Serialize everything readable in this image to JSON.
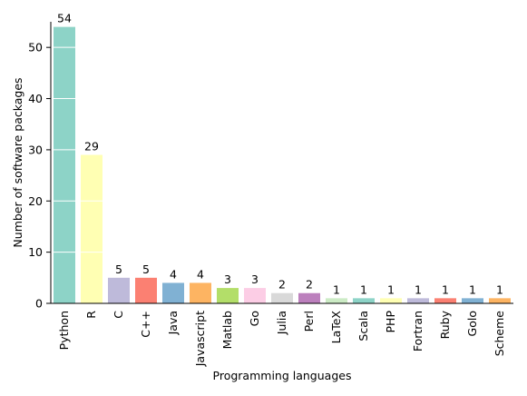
{
  "chart_data": {
    "type": "bar",
    "xlabel": "Programming languages",
    "ylabel": "Number of software packages",
    "ylim": [
      0,
      55
    ],
    "yticks": [
      0,
      10,
      20,
      30,
      40,
      50
    ],
    "grid": "horizontal white lines across bars",
    "categories": [
      "Python",
      "R",
      "C",
      "C++",
      "Java",
      "Javascript",
      "Matlab",
      "Go",
      "Julia",
      "Perl",
      "LaTeX",
      "Scala",
      "PHP",
      "Fortran",
      "Ruby",
      "Golo",
      "Scheme"
    ],
    "values": [
      54,
      29,
      5,
      5,
      4,
      4,
      3,
      3,
      2,
      2,
      1,
      1,
      1,
      1,
      1,
      1,
      1
    ],
    "colors": [
      "#8dd3c7",
      "#ffffb3",
      "#bebada",
      "#fb8072",
      "#80b1d3",
      "#fdb462",
      "#b3de69",
      "#fccde5",
      "#d9d9d9",
      "#bc80bd",
      "#ccebc5",
      "#8dd3c7",
      "#ffffb3",
      "#bebada",
      "#fb8072",
      "#80b1d3",
      "#fdb462"
    ]
  }
}
